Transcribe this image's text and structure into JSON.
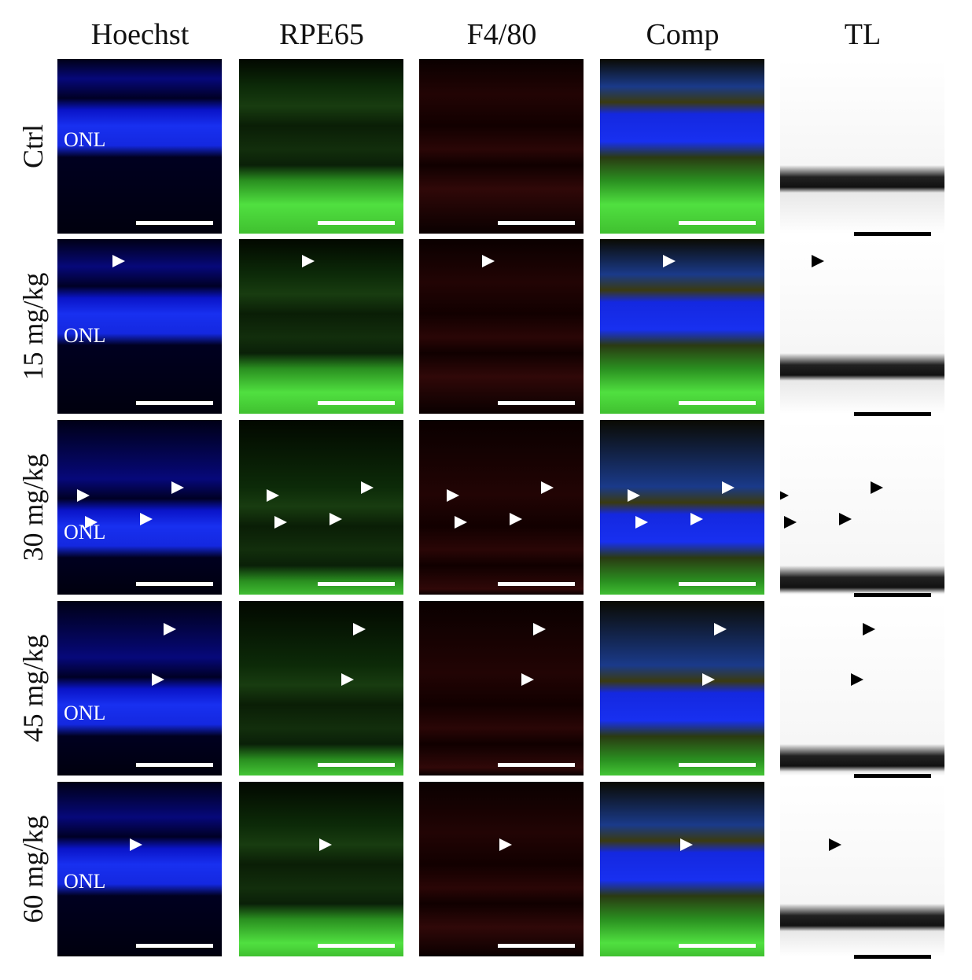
{
  "columns": [
    {
      "label": "Hoechst",
      "channel": "hoechst"
    },
    {
      "label": "RPE65",
      "channel": "rpe65"
    },
    {
      "label": "F4/80",
      "channel": "f480"
    },
    {
      "label": "Comp",
      "channel": "comp"
    },
    {
      "label": "TL",
      "channel": "tl"
    }
  ],
  "rows": [
    {
      "label": "Ctrl",
      "layer_label": "ONL"
    },
    {
      "label": "15 mg/kg",
      "layer_label": "ONL"
    },
    {
      "label": "30 mg/kg",
      "layer_label": "ONL"
    },
    {
      "label": "45 mg/kg",
      "layer_label": "ONL"
    },
    {
      "label": "60 mg/kg",
      "layer_label": "ONL"
    }
  ],
  "colors": {
    "hoechst": "#1a2cff",
    "rpe65": "#3cff3c",
    "f480": "#ff2020",
    "scale_bar_fluorescence": "#ffffff",
    "scale_bar_tl": "#000000"
  }
}
